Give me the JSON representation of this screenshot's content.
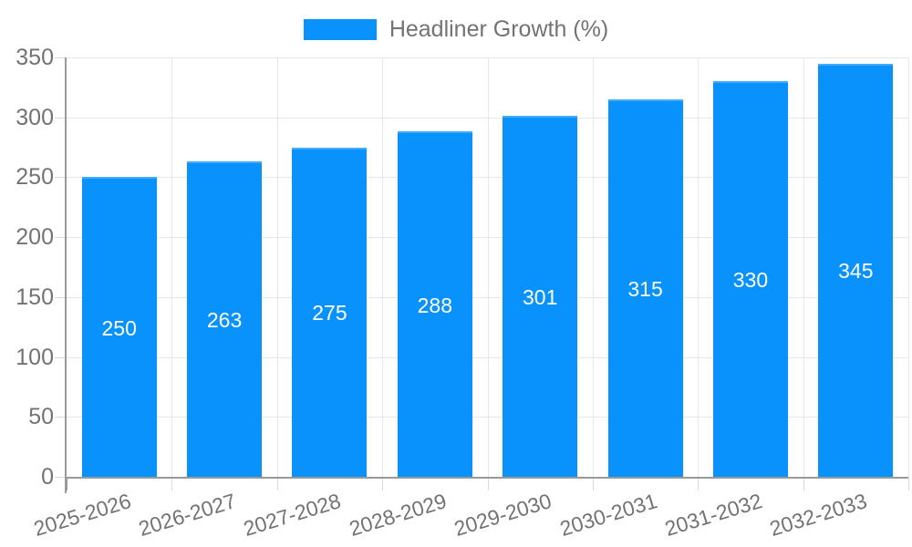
{
  "chart_data": {
    "type": "bar",
    "title": "Headliner Growth (%)",
    "series_name": "Headliner Growth (%)",
    "legend_position": "top-center",
    "categories": [
      "2025-2026",
      "2026-2027",
      "2027-2028",
      "2028-2029",
      "2029-2030",
      "2030-2031",
      "2031-2032",
      "2032-2033"
    ],
    "values": [
      250,
      263,
      275,
      288,
      301,
      315,
      330,
      345
    ],
    "bar_value_labels": [
      "250",
      "263",
      "275",
      "288",
      "301",
      "315",
      "330",
      "345"
    ],
    "xlabel": "",
    "ylabel": "",
    "ylim": [
      0,
      350
    ],
    "yticks": [
      0,
      50,
      100,
      150,
      200,
      250,
      300,
      350
    ],
    "grid": true,
    "x_label_rotation_deg": -17,
    "colors": {
      "bar_fill": "#0992fb",
      "bar_top_edge": "#43abfc",
      "grid_line": "#e7e7e7",
      "axis_line": "#999999",
      "tick_line": "#d9d9d9",
      "label_text": "#737373",
      "bar_value_text": "#ffffff",
      "background": "#ffffff"
    }
  }
}
